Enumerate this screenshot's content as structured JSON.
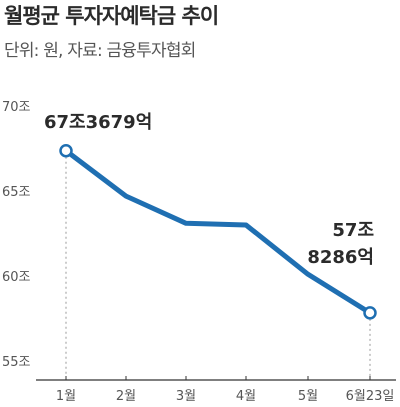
{
  "chart_data": {
    "type": "line",
    "title": "월평균 투자자예탁금 추이",
    "subtitle": "단위: 원, 자료: 금융투자협회",
    "categories": [
      "1월",
      "2월",
      "3월",
      "4월",
      "5월",
      "6월23일"
    ],
    "values": [
      67.3679,
      64.7,
      63.1,
      63.0,
      60.1,
      57.8286
    ],
    "ylim": [
      55,
      70
    ],
    "yticks": [
      70,
      65,
      60,
      55
    ],
    "ytick_labels": [
      "70조",
      "65조",
      "60조",
      "55조"
    ],
    "annotations": [
      {
        "index": 0,
        "lines": [
          "67조3679억"
        ]
      },
      {
        "index": 5,
        "lines": [
          "57조",
          "8286억"
        ]
      }
    ],
    "colors": {
      "line": "#1f6fb2",
      "marker_fill": "#ffffff",
      "guide": "#9a9a9a"
    },
    "grid": false,
    "legend": "none"
  }
}
